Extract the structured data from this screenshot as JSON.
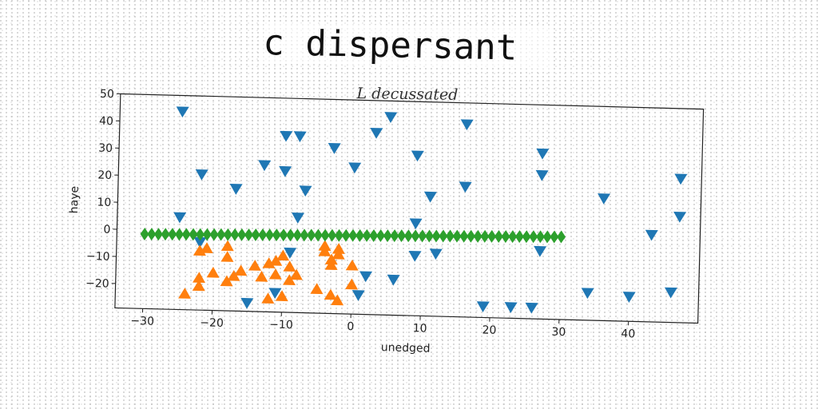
{
  "title": "c dispersant",
  "chart_data": {
    "type": "scatter",
    "subtitle": "L decussated",
    "xlabel": "unedged",
    "ylabel": "haye",
    "xlim": [
      -34,
      50
    ],
    "ylim": [
      -29,
      50
    ],
    "xticks": [
      -30,
      -20,
      -10,
      0,
      10,
      20,
      30,
      40
    ],
    "yticks": [
      -20,
      -10,
      0,
      10,
      20,
      30,
      40,
      50
    ],
    "grid": false,
    "series": [
      {
        "color": "#1f77b4",
        "marker": "triangle-down",
        "points": [
          [
            -25,
            44
          ],
          [
            -22,
            21
          ],
          [
            -25,
            5
          ],
          [
            -17,
            16
          ],
          [
            -13,
            25
          ],
          [
            -10,
            36
          ],
          [
            -8,
            36
          ],
          [
            -10,
            23
          ],
          [
            -3,
            32
          ],
          [
            0,
            25
          ],
          [
            -7,
            16
          ],
          [
            -8,
            6
          ],
          [
            3,
            38
          ],
          [
            5,
            44
          ],
          [
            9,
            30
          ],
          [
            11,
            15
          ],
          [
            9,
            5
          ],
          [
            16,
            42
          ],
          [
            16,
            19
          ],
          [
            27,
            32
          ],
          [
            27,
            24
          ],
          [
            27,
            -4
          ],
          [
            12,
            -6
          ],
          [
            9,
            -7
          ],
          [
            -11,
            -22
          ],
          [
            1,
            -22
          ],
          [
            2,
            -15
          ],
          [
            6,
            -16
          ],
          [
            -15,
            -26
          ],
          [
            19,
            -25
          ],
          [
            23,
            -25
          ],
          [
            26,
            -25
          ],
          [
            34,
            -19
          ],
          [
            36,
            16
          ],
          [
            40,
            -20
          ],
          [
            43,
            3
          ],
          [
            47,
            24
          ],
          [
            47,
            10
          ],
          [
            46,
            -18
          ],
          [
            -22,
            -4
          ],
          [
            -9,
            -7
          ]
        ]
      },
      {
        "color": "#ff7f0e",
        "marker": "triangle-up",
        "points": [
          [
            -22,
            -7
          ],
          [
            -21,
            -6
          ],
          [
            -18,
            -5
          ],
          [
            -18,
            -9
          ],
          [
            -22,
            -17
          ],
          [
            -20,
            -15
          ],
          [
            -24,
            -23
          ],
          [
            -22,
            -20
          ],
          [
            -17,
            -16
          ],
          [
            -18,
            -18
          ],
          [
            -16,
            -14
          ],
          [
            -14,
            -12
          ],
          [
            -12,
            -11
          ],
          [
            -13,
            -16
          ],
          [
            -11,
            -15
          ],
          [
            -10,
            -8
          ],
          [
            -11,
            -10
          ],
          [
            -9,
            -12
          ],
          [
            -9,
            -17
          ],
          [
            -8,
            -15
          ],
          [
            -4,
            -4
          ],
          [
            -4,
            -6
          ],
          [
            -2,
            -5
          ],
          [
            -2,
            -7
          ],
          [
            -3,
            -9
          ],
          [
            -3,
            -11
          ],
          [
            0,
            -11
          ],
          [
            0,
            -18
          ],
          [
            -5,
            -20
          ],
          [
            -3,
            -22
          ],
          [
            -2,
            -24
          ],
          [
            -10,
            -23
          ],
          [
            -12,
            -24
          ]
        ]
      },
      {
        "color": "#2ca02c",
        "marker": "diamond",
        "points": [
          [
            -30.0,
            -1.5
          ],
          [
            -29.0,
            -1.45
          ],
          [
            -28.0,
            -1.4
          ],
          [
            -27.0,
            -1.35
          ],
          [
            -26.0,
            -1.3
          ],
          [
            -25.0,
            -1.25
          ],
          [
            -24.0,
            -1.2
          ],
          [
            -23.0,
            -1.15
          ],
          [
            -22.0,
            -1.1
          ],
          [
            -21.0,
            -1.05
          ],
          [
            -20.0,
            -1.0
          ],
          [
            -19.0,
            -0.95
          ],
          [
            -18.0,
            -0.9
          ],
          [
            -17.0,
            -0.85
          ],
          [
            -16.0,
            -0.8
          ],
          [
            -15.0,
            -0.75
          ],
          [
            -14.0,
            -0.7
          ],
          [
            -13.0,
            -0.65
          ],
          [
            -12.0,
            -0.6
          ],
          [
            -11.0,
            -0.55
          ],
          [
            -10.0,
            -0.5
          ],
          [
            -9.0,
            -0.45
          ],
          [
            -8.0,
            -0.4
          ],
          [
            -7.0,
            -0.35
          ],
          [
            -6.0,
            -0.3
          ],
          [
            -5.0,
            -0.25
          ],
          [
            -4.0,
            -0.2
          ],
          [
            -3.0,
            -0.15
          ],
          [
            -2.0,
            -0.1
          ],
          [
            -1.0,
            -0.05
          ],
          [
            0.0,
            0.0
          ],
          [
            1.0,
            0.05
          ],
          [
            2.0,
            0.1
          ],
          [
            3.0,
            0.15
          ],
          [
            4.0,
            0.2
          ],
          [
            5.0,
            0.25
          ],
          [
            6.0,
            0.3
          ],
          [
            7.0,
            0.35
          ],
          [
            8.0,
            0.4
          ],
          [
            9.0,
            0.45
          ],
          [
            10.0,
            0.5
          ],
          [
            11.0,
            0.55
          ],
          [
            12.0,
            0.6
          ],
          [
            13.0,
            0.65
          ],
          [
            14.0,
            0.7
          ],
          [
            15.0,
            0.75
          ],
          [
            16.0,
            0.8
          ],
          [
            17.0,
            0.85
          ],
          [
            18.0,
            0.9
          ],
          [
            19.0,
            0.95
          ],
          [
            20.0,
            1.0
          ],
          [
            21.0,
            1.05
          ],
          [
            22.0,
            1.1
          ],
          [
            23.0,
            1.15
          ],
          [
            24.0,
            1.2
          ],
          [
            25.0,
            1.25
          ],
          [
            26.0,
            1.3
          ],
          [
            27.0,
            1.35
          ],
          [
            28.0,
            1.4
          ],
          [
            29.0,
            1.45
          ],
          [
            30.0,
            1.5
          ]
        ]
      }
    ]
  }
}
